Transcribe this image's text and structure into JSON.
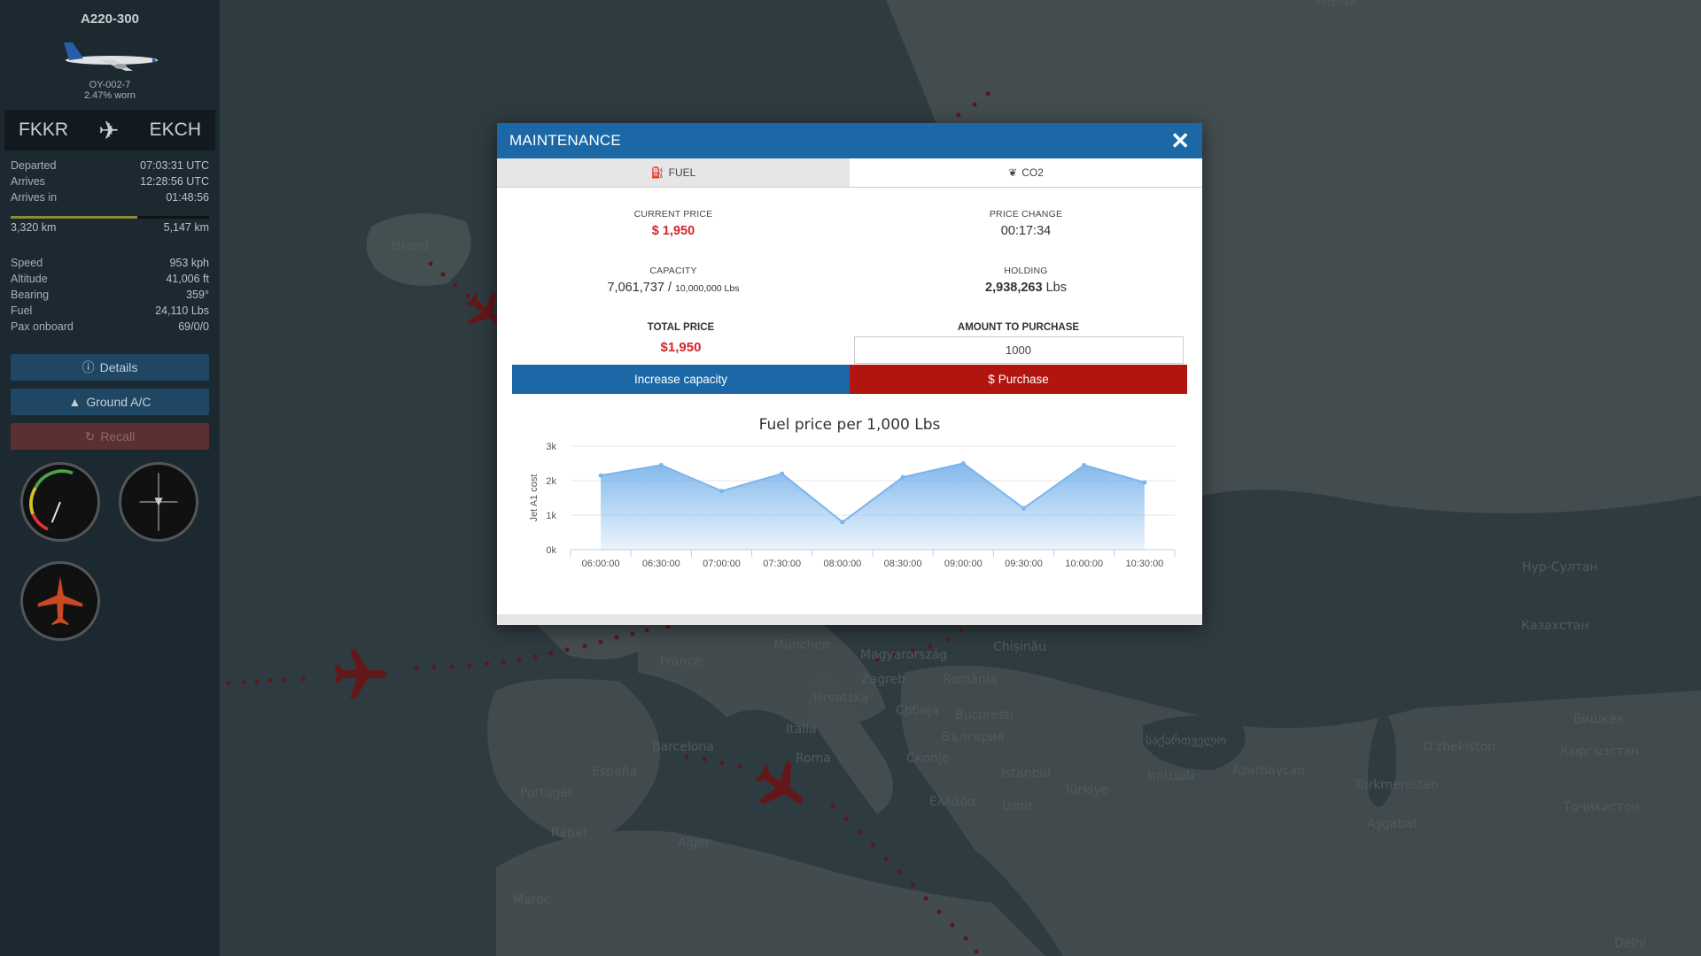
{
  "sidebar": {
    "aircraft_model": "A220-300",
    "registration": "OY-002-7",
    "wear": "2.47% worn",
    "origin": "FKKR",
    "destination": "EKCH",
    "info": [
      {
        "key": "Departed",
        "value": "07:03:31 UTC"
      },
      {
        "key": "Arrives",
        "value": "12:28:56 UTC"
      },
      {
        "key": "Arrives in",
        "value": "01:48:56"
      }
    ],
    "progress": 0.64,
    "distance_flown": "3,320 km",
    "distance_total": "5,147 km",
    "stats": [
      {
        "key": "Speed",
        "value": "953 kph"
      },
      {
        "key": "Altitude",
        "value": "41,006 ft"
      },
      {
        "key": "Bearing",
        "value": "359°"
      },
      {
        "key": "Fuel",
        "value": "24,110 Lbs"
      },
      {
        "key": "Pax onboard",
        "value": "69/0/0"
      }
    ],
    "buttons": {
      "details": "Details",
      "ground": "Ground A/C",
      "recall": "Recall"
    }
  },
  "map_labels": [
    {
      "text": "острове"
    },
    {
      "text": "Island"
    },
    {
      "text": "France"
    },
    {
      "text": "München"
    },
    {
      "text": "Magyarország"
    },
    {
      "text": "Chișinău"
    },
    {
      "text": "Zagreb"
    },
    {
      "text": "România"
    },
    {
      "text": "Hrvatska"
    },
    {
      "text": "Србија"
    },
    {
      "text": "București"
    },
    {
      "text": "Italia"
    },
    {
      "text": "България"
    },
    {
      "text": "Barcelona"
    },
    {
      "text": "Roma"
    },
    {
      "text": "Скопје"
    },
    {
      "text": "España"
    },
    {
      "text": "Ελλάδα"
    },
    {
      "text": "İstanbul"
    },
    {
      "text": "Portugal"
    },
    {
      "text": "İzmir"
    },
    {
      "text": "Türkiye"
    },
    {
      "text": "Rabat"
    },
    {
      "text": "Alger"
    },
    {
      "text": "Maroc"
    },
    {
      "text": "Нур-Султан"
    },
    {
      "text": "Казахстан"
    },
    {
      "text": "Бишкек"
    },
    {
      "text": "O'zbekiston"
    },
    {
      "text": "Кыргызстан"
    },
    {
      "text": "საქართველო"
    },
    {
      "text": "Երևան"
    },
    {
      "text": "Azərbaycan"
    },
    {
      "text": "Türkmenistan"
    },
    {
      "text": "Тоҷикистон"
    },
    {
      "text": "Aşgabat"
    },
    {
      "text": "Delhi"
    }
  ],
  "modal": {
    "title": "MAINTENANCE",
    "tabs": {
      "fuel": "FUEL",
      "co2": "CO2"
    },
    "current_price_label": "CURRENT PRICE",
    "current_price": "$ 1,950",
    "price_change_label": "PRICE CHANGE",
    "price_change": "00:17:34",
    "capacity_label": "CAPACITY",
    "capacity_value": "7,061,737",
    "capacity_sep": " / ",
    "capacity_max": "10,000,000 Lbs",
    "holding_label": "HOLDING",
    "holding_value": "2,938,263",
    "holding_unit": " Lbs",
    "total_price_label": "TOTAL PRICE",
    "total_price": "$1,950",
    "amount_label": "AMOUNT TO PURCHASE",
    "amount_value": "1000",
    "btn_capacity": "Increase capacity",
    "btn_purchase": "Purchase",
    "accent": "#1c68a6",
    "danger": "#b0150f"
  },
  "chart_data": {
    "type": "area",
    "title": "Fuel price per 1,000 Lbs",
    "ylabel": "Jet A1 cost",
    "xlabel": "",
    "x": [
      "06:00:00",
      "06:30:00",
      "07:00:00",
      "07:30:00",
      "08:00:00",
      "08:30:00",
      "09:00:00",
      "09:30:00",
      "10:00:00",
      "10:30:00"
    ],
    "values": [
      2150,
      2450,
      1700,
      2200,
      800,
      2100,
      2500,
      1200,
      2450,
      1950
    ],
    "yticks": [
      "0k",
      "1k",
      "2k",
      "3k"
    ],
    "ylim": [
      0,
      3000
    ],
    "grid": true,
    "color": "#7cb5ec"
  }
}
